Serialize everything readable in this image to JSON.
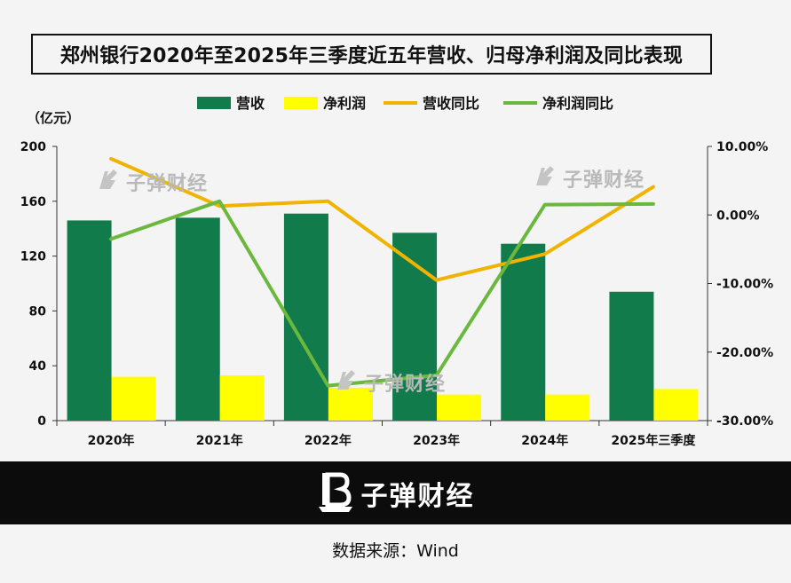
{
  "title": "郑州银行2020年至2025年三季度近五年营收、归母净利润及同比表现",
  "unit_label": "（亿元）",
  "watermark": "子弹财经",
  "brand": "子弹财经",
  "source": "数据来源：Wind",
  "chart_data": {
    "type": "bar",
    "categories": [
      "2020年",
      "2021年",
      "2022年",
      "2023年",
      "2024年",
      "2025年三季度"
    ],
    "series": [
      {
        "name": "营收",
        "kind": "bar",
        "axis": "left",
        "color": "#117b4b",
        "values": [
          146,
          148,
          151,
          137,
          129,
          94
        ]
      },
      {
        "name": "净利润",
        "kind": "bar",
        "axis": "left",
        "color": "#ffff00",
        "values": [
          32,
          33,
          24,
          19,
          19,
          23
        ]
      },
      {
        "name": "营收同比",
        "kind": "line",
        "axis": "right",
        "color": "#f0b400",
        "values": [
          8.2,
          1.3,
          2.0,
          -9.5,
          -5.7,
          4.1
        ]
      },
      {
        "name": "净利润同比",
        "kind": "line",
        "axis": "right",
        "color": "#6bb83e",
        "values": [
          -3.5,
          2.0,
          -24.9,
          -23.4,
          1.5,
          1.6
        ]
      }
    ],
    "y_left": {
      "min": 0,
      "max": 200,
      "ticks": [
        "0",
        "40",
        "80",
        "120",
        "160",
        "200"
      ]
    },
    "y_right": {
      "min": -30,
      "max": 10,
      "ticks": [
        "-30.00%",
        "-20.00%",
        "-10.00%",
        "0.00%",
        "10.00%"
      ]
    },
    "legend_position": "top-center",
    "grid": false
  }
}
